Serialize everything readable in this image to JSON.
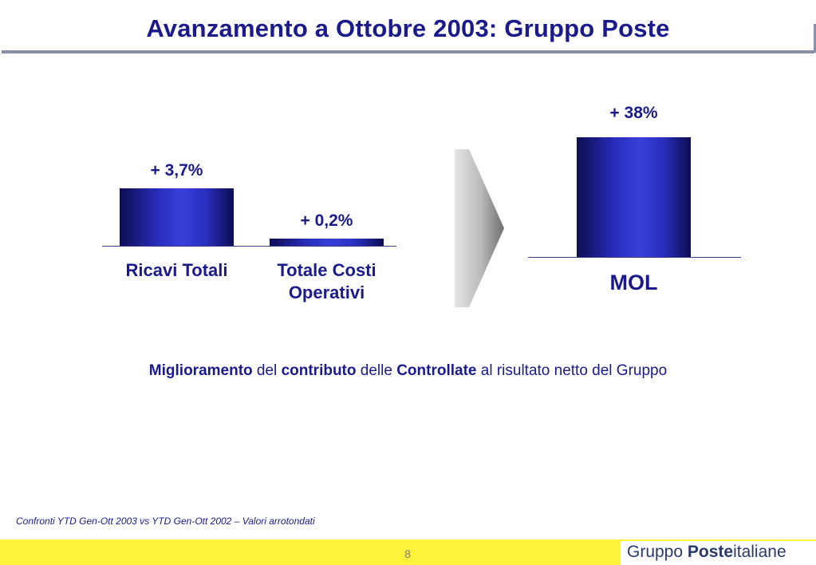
{
  "slide": {
    "title": "Avanzamento a Ottobre 2003: Gruppo Poste",
    "page_number": "8"
  },
  "chart_data": [
    {
      "type": "bar",
      "categories": [
        "Ricavi Totali",
        "Totale Costi Operativi"
      ],
      "category_lines": [
        [
          "Ricavi Totali"
        ],
        [
          "Totale Costi",
          "Operativi"
        ]
      ],
      "values": [
        3.7,
        0.2
      ],
      "data_labels": [
        "+ 3,7%",
        "+ 0,2%"
      ]
    },
    {
      "type": "bar",
      "categories": [
        "MOL"
      ],
      "values": [
        38
      ],
      "data_labels": [
        "+ 38%"
      ]
    }
  ],
  "statement": {
    "parts": [
      {
        "text": "Miglioramento",
        "bold": true
      },
      {
        "text": " del ",
        "bold": false
      },
      {
        "text": "contributo",
        "bold": true
      },
      {
        "text": " delle ",
        "bold": false
      },
      {
        "text": "Controllate",
        "bold": true
      },
      {
        "text": " al risultato netto del Gruppo",
        "bold": false
      }
    ]
  },
  "footnote": "Confronti YTD Gen-Ott 2003 vs YTD Gen-Ott 2002 – Valori arrotondati",
  "logo": {
    "part1": "Gruppo ",
    "part2": "Poste",
    "part3": "italiane"
  },
  "colors": {
    "title": "#1a1a8c",
    "bar_dark": "#0d0d52",
    "bar_light": "#3a3fd8",
    "footer_band": "#fff23a"
  }
}
